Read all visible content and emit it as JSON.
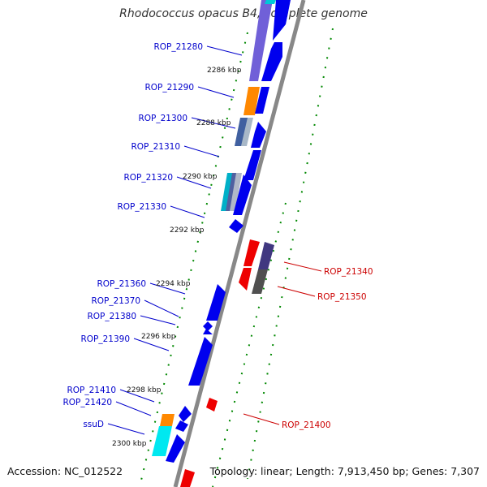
{
  "title": "Rhodococcus opacus B4, complete genome",
  "accession": "Accession: NC_012522",
  "topology": "Topology: linear; Length: 7,913,450 bp; Genes: 7,307",
  "colors": {
    "backbone": "#888888",
    "forward": "#0000ee",
    "reverse": "#ee0000",
    "tick": "#008800",
    "label_forward": "#0000cc",
    "label_reverse": "#cc0000"
  },
  "kbp_labels": [
    "2286 kbp",
    "2288 kbp",
    "2290 kbp",
    "2292 kbp",
    "2294 kbp",
    "2296 kbp",
    "2298 kbp",
    "2300 kbp"
  ],
  "forward_genes": [
    "ROP_21280",
    "ROP_21290",
    "ROP_21300",
    "ROP_21310",
    "ROP_21320",
    "ROP_21330",
    "ROP_21360",
    "ROP_21370",
    "ROP_21380",
    "ROP_21390",
    "ROP_21410",
    "ROP_21420",
    "ssuD"
  ],
  "reverse_genes": [
    "ROP_21340",
    "ROP_21350",
    "ROP_21400"
  ]
}
